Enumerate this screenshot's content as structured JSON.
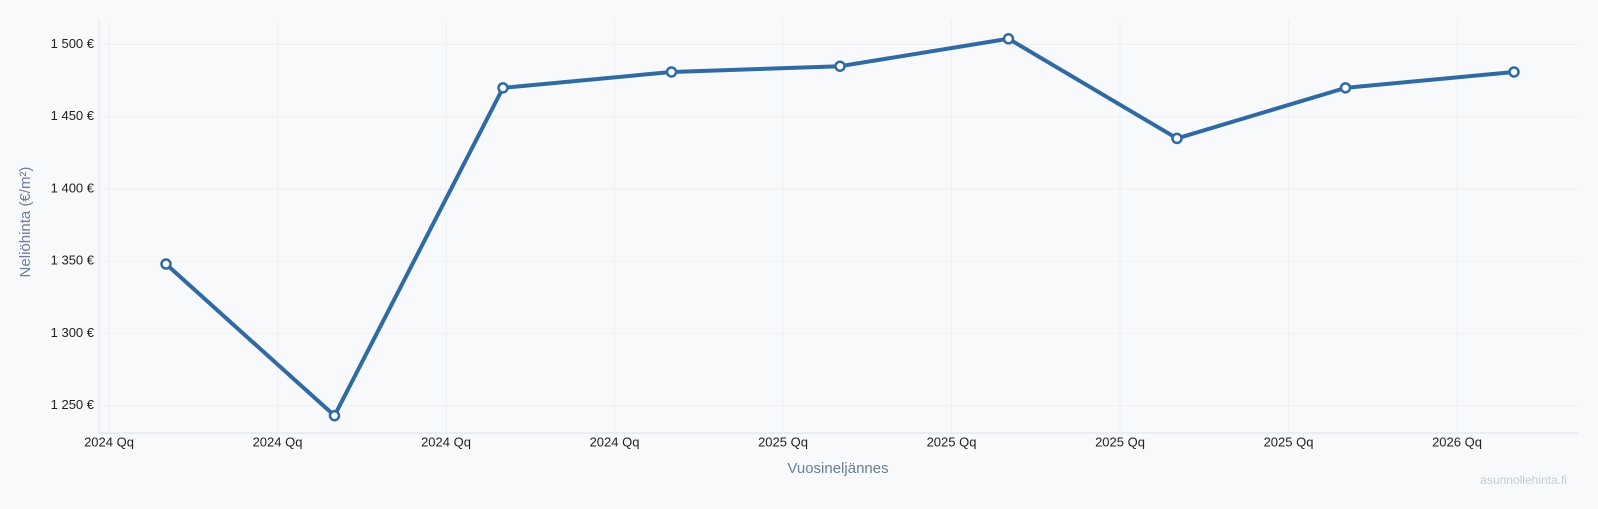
{
  "chart_data": {
    "type": "line",
    "x_label": "Vuosineljännes",
    "y_label": "Neliöhinta (€/m²)",
    "watermark": "asunnollehinta.fi",
    "categories": [
      "2024 Qq",
      "2024 Qq",
      "2024 Qq",
      "2024 Qq",
      "2025 Qq",
      "2025 Qq",
      "2025 Qq",
      "2025 Qq",
      "2026 Qq"
    ],
    "series": [
      {
        "name": "Neliöhinta",
        "color": "#2f6aa3",
        "values": [
          1348,
          1243,
          1470,
          1481,
          1485,
          1504,
          1435,
          1470,
          1481
        ]
      }
    ],
    "ylim": [
      1231,
      1517
    ],
    "yticks": [
      {
        "value": 1250,
        "label": "1 250 €"
      },
      {
        "value": 1300,
        "label": "1 300 €"
      },
      {
        "value": 1350,
        "label": "1 350 €"
      },
      {
        "value": 1400,
        "label": "1 400 €"
      },
      {
        "value": 1450,
        "label": "1 450 €"
      },
      {
        "value": 1500,
        "label": "1 500 €"
      }
    ],
    "grid": true
  }
}
